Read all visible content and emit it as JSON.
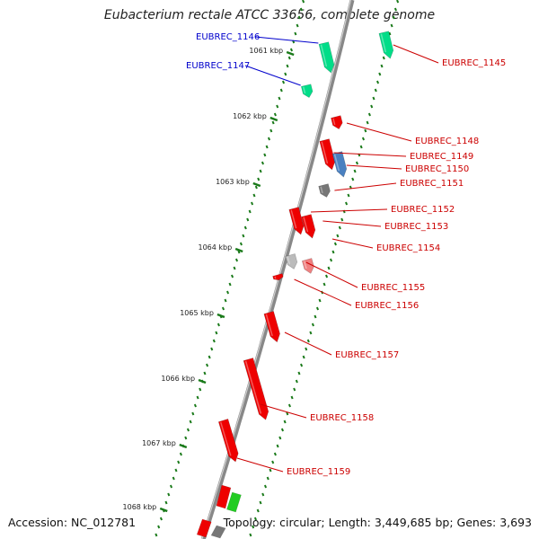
{
  "title": "Eubacterium rectale ATCC 33656, complete genome",
  "footer": {
    "accession": "Accession: NC_012781",
    "stats": "Topology: circular; Length: 3,449,685 bp; Genes: 3,693"
  },
  "colors": {
    "backbone": "#888888",
    "ticks": "#1a7a1a",
    "label_blue": "#0000cc",
    "label_red": "#cc0000"
  },
  "ticks": [
    "1061 kbp",
    "1062 kbp",
    "1063 kbp",
    "1064 kbp",
    "1065 kbp",
    "1066 kbp",
    "1067 kbp",
    "1068 kbp"
  ],
  "genes": [
    {
      "label": "EUBREC_1146",
      "color": "#00dd88",
      "strand": "inner",
      "label_color": "blue"
    },
    {
      "label": "EUBREC_1147",
      "color": "#00dd88",
      "strand": "inner",
      "label_color": "blue"
    },
    {
      "label": "EUBREC_1145",
      "color": "#00dd88",
      "strand": "outer",
      "label_color": "red"
    },
    {
      "label": "EUBREC_1148",
      "color": "#ee0000",
      "strand": "outer",
      "label_color": "red"
    },
    {
      "label": "EUBREC_1149",
      "color": "#ee0000",
      "strand": "outer",
      "label_color": "red"
    },
    {
      "label": "EUBREC_1150",
      "color": "#4a80c0",
      "strand": "outer",
      "label_color": "red"
    },
    {
      "label": "EUBREC_1151",
      "color": "#777777",
      "strand": "outer",
      "label_color": "red"
    },
    {
      "label": "EUBREC_1152",
      "color": "#ee0000",
      "strand": "outer",
      "label_color": "red"
    },
    {
      "label": "EUBREC_1153",
      "color": "#ee0000",
      "strand": "outer",
      "label_color": "red"
    },
    {
      "label": "EUBREC_1154",
      "color": "#f08080",
      "strand": "outer",
      "label_color": "red"
    },
    {
      "label": "EUBREC_1155",
      "color": "#bbbbbb",
      "strand": "outer",
      "label_color": "red"
    },
    {
      "label": "EUBREC_1156",
      "color": "#ee0000",
      "strand": "outer",
      "label_color": "red"
    },
    {
      "label": "EUBREC_1157",
      "color": "#ee0000",
      "strand": "outer",
      "label_color": "red"
    },
    {
      "label": "EUBREC_1158",
      "color": "#ee0000",
      "strand": "outer",
      "label_color": "red"
    },
    {
      "label": "EUBREC_1159",
      "color": "#ee0000",
      "strand": "outer",
      "label_color": "red"
    }
  ]
}
